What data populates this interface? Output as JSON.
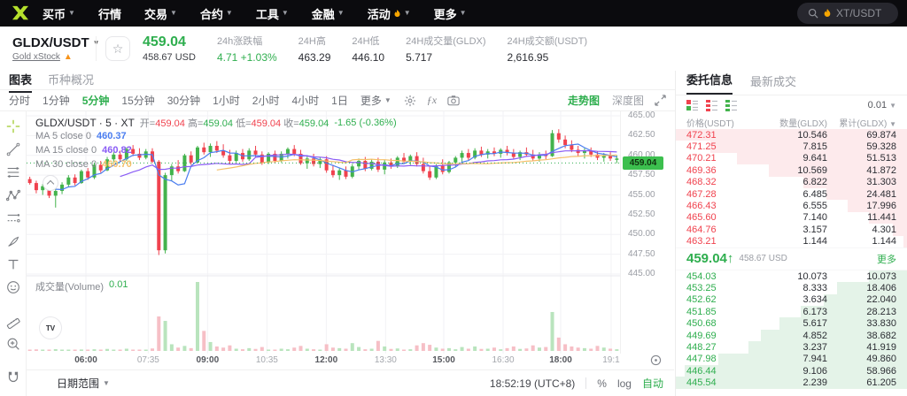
{
  "colors": {
    "green": "#2eae4e",
    "red": "#f0424e",
    "lime": "#b5e02c",
    "orange": "#f7a600",
    "depth_ask": "#fdeaec",
    "depth_bid": "#e4f3e8"
  },
  "nav": {
    "items": [
      {
        "name": "buy",
        "label": "买币",
        "caret": true
      },
      {
        "name": "markets",
        "label": "行情",
        "caret": false
      },
      {
        "name": "trade",
        "label": "交易",
        "caret": true
      },
      {
        "name": "futures",
        "label": "合约",
        "caret": true
      },
      {
        "name": "tools",
        "label": "工具",
        "caret": true
      },
      {
        "name": "finance",
        "label": "金融",
        "caret": true
      },
      {
        "name": "campaigns",
        "label": "活动",
        "caret": true,
        "flame": true
      },
      {
        "name": "more",
        "label": "更多",
        "caret": true
      }
    ],
    "search": {
      "placeholder": "XT/USDT"
    }
  },
  "ticker": {
    "pair": "GLDX/USDT",
    "name": "Gold xStock",
    "price": "459.04",
    "price_usd": "458.67 USD",
    "stats": [
      {
        "name": "change",
        "label": "24h涨跌幅",
        "value": "4.71 +1.03%",
        "green": true
      },
      {
        "name": "high",
        "label": "24H高",
        "value": "463.29"
      },
      {
        "name": "low",
        "label": "24H低",
        "value": "446.10"
      },
      {
        "name": "volume-base",
        "label": "24H成交量(GLDX)",
        "value": "5.717"
      },
      {
        "name": "volume-quote",
        "label": "24H成交额(USDT)",
        "value": "2,616.95"
      }
    ]
  },
  "chart_panel": {
    "tabs": [
      "图表",
      "币种概况"
    ],
    "active_tab": "图表",
    "timeframes": [
      "分时",
      "1分钟",
      "5分钟",
      "15分钟",
      "30分钟",
      "1小时",
      "2小时",
      "4小时",
      "1日"
    ],
    "active_timeframe": "5分钟",
    "more_label": "更多",
    "view_tabs": [
      "走势图",
      "深度图"
    ],
    "active_view": "走势图",
    "legend": {
      "title": "GLDX/USDT · 5 · XT",
      "items": [
        {
          "label": "开=",
          "value": "459.04",
          "color": "red"
        },
        {
          "label": "高=",
          "value": "459.04",
          "color": "green"
        },
        {
          "label": "低=",
          "value": "459.04",
          "color": "red"
        },
        {
          "label": "收=",
          "value": "459.04",
          "color": "green"
        }
      ],
      "change": "-1.65 (-0.36%)"
    },
    "mas": [
      {
        "label": "MA 5 close 0",
        "value": "460.37",
        "color": "#4a7df0"
      },
      {
        "label": "MA 15 close 0",
        "value": "460.82",
        "color": "#8a5cf5"
      },
      {
        "label": "MA 30 close 0",
        "value": "460.70",
        "color": "#f5c06a"
      }
    ],
    "volume_label": "成交量(Volume)",
    "volume_value": "0.01",
    "bottom": {
      "date_range": "日期范围",
      "clock": "18:52:19 (UTC+8)",
      "percent": "%",
      "log": "log",
      "auto": "自动"
    }
  },
  "chart_data": {
    "type": "candlestick",
    "symbol": "GLDX/USDT",
    "interval": "5m",
    "price_line": 459.04,
    "ylim": [
      445.0,
      465.0
    ],
    "y_ticks": [
      "465.00",
      "462.50",
      "460.00",
      "457.50",
      "455.00",
      "452.50",
      "450.00",
      "447.50",
      "445.00"
    ],
    "x_labels": [
      {
        "t": "06:00",
        "f": 0.1,
        "bold": true
      },
      {
        "t": "07:35",
        "f": 0.205,
        "bold": false
      },
      {
        "t": "09:00",
        "f": 0.305,
        "bold": true
      },
      {
        "t": "10:35",
        "f": 0.405,
        "bold": false
      },
      {
        "t": "12:00",
        "f": 0.505,
        "bold": true
      },
      {
        "t": "13:30",
        "f": 0.605,
        "bold": false
      },
      {
        "t": "15:00",
        "f": 0.703,
        "bold": true
      },
      {
        "t": "16:30",
        "f": 0.803,
        "bold": false
      },
      {
        "t": "18:00",
        "f": 0.9,
        "bold": true
      },
      {
        "t": "19:1",
        "f": 0.985,
        "bold": false
      }
    ],
    "colors": {
      "up": "#43b34c",
      "down": "#f0424e",
      "vol_up": "#b9e4bd",
      "vol_down": "#f6bfc6",
      "ma5": "#4a7df0",
      "ma15": "#8a5cf5",
      "ma30": "#f5c06a",
      "price_line": "#2eae4e"
    },
    "candles": [
      [
        457.0,
        457.3,
        456.3,
        456.5,
        0.01
      ],
      [
        456.5,
        456.8,
        455.2,
        455.6,
        0.014
      ],
      [
        455.6,
        456.4,
        455.0,
        456.1,
        0.008
      ],
      [
        456.1,
        456.3,
        454.6,
        454.9,
        0.012
      ],
      [
        454.9,
        455.8,
        453.4,
        455.5,
        0.016
      ],
      [
        455.5,
        456.6,
        455.1,
        456.3,
        0.009
      ],
      [
        456.3,
        457.5,
        456.0,
        457.2,
        0.011
      ],
      [
        457.2,
        457.6,
        456.2,
        456.5,
        0.007
      ],
      [
        456.5,
        458.2,
        456.4,
        458.0,
        0.013
      ],
      [
        458.0,
        458.4,
        456.9,
        457.2,
        0.01
      ],
      [
        457.2,
        459.0,
        457.0,
        458.8,
        0.015
      ],
      [
        458.8,
        459.3,
        457.8,
        458.1,
        0.008
      ],
      [
        458.1,
        459.8,
        458.0,
        459.5,
        0.018
      ],
      [
        459.5,
        460.4,
        458.9,
        460.1,
        0.012
      ],
      [
        460.1,
        460.6,
        459.2,
        459.5,
        0.009
      ],
      [
        459.5,
        461.0,
        459.3,
        460.8,
        0.02
      ],
      [
        460.8,
        461.3,
        459.9,
        460.2,
        0.011
      ],
      [
        460.2,
        460.9,
        459.4,
        459.7,
        0.008
      ],
      [
        459.7,
        460.8,
        459.5,
        460.5,
        0.01
      ],
      [
        460.5,
        460.9,
        459.0,
        459.2,
        0.022
      ],
      [
        459.2,
        459.4,
        447.4,
        448.0,
        0.31
      ],
      [
        448.0,
        457.8,
        447.6,
        457.5,
        0.27
      ],
      [
        457.5,
        458.9,
        456.8,
        458.6,
        0.06
      ],
      [
        458.6,
        459.4,
        457.7,
        458.0,
        0.03
      ],
      [
        458.0,
        460.2,
        457.9,
        460.0,
        0.045
      ],
      [
        460.0,
        460.5,
        458.8,
        459.1,
        0.025
      ],
      [
        459.1,
        461.2,
        459.0,
        461.0,
        0.62
      ],
      [
        461.0,
        461.6,
        460.1,
        460.4,
        0.18
      ],
      [
        460.4,
        461.5,
        459.8,
        461.2,
        0.08
      ],
      [
        461.2,
        461.8,
        460.3,
        460.6,
        0.04
      ],
      [
        460.6,
        461.4,
        459.7,
        460.0,
        0.03
      ],
      [
        460.0,
        460.7,
        458.9,
        459.3,
        0.05
      ],
      [
        459.3,
        460.6,
        459.1,
        460.3,
        0.02
      ],
      [
        460.3,
        460.8,
        459.2,
        459.5,
        0.015
      ],
      [
        459.5,
        460.9,
        459.3,
        460.6,
        0.025
      ],
      [
        460.6,
        461.2,
        459.8,
        460.1,
        0.018
      ],
      [
        460.1,
        460.5,
        458.8,
        459.1,
        0.035
      ],
      [
        459.1,
        460.4,
        458.9,
        460.2,
        0.012
      ],
      [
        460.2,
        460.6,
        459.0,
        459.3,
        0.01
      ],
      [
        459.3,
        460.5,
        459.1,
        460.2,
        0.02
      ],
      [
        460.2,
        461.0,
        459.6,
        460.8,
        0.015
      ],
      [
        460.8,
        461.3,
        459.9,
        460.2,
        0.03
      ],
      [
        460.2,
        460.7,
        458.8,
        459.0,
        0.045
      ],
      [
        459.0,
        459.9,
        458.3,
        459.6,
        0.02
      ],
      [
        459.6,
        460.2,
        458.6,
        458.9,
        0.015
      ],
      [
        458.9,
        459.8,
        458.4,
        459.5,
        0.01
      ],
      [
        459.5,
        459.9,
        457.8,
        458.1,
        0.06
      ],
      [
        458.1,
        458.8,
        457.2,
        457.5,
        0.03
      ],
      [
        457.5,
        458.4,
        456.9,
        458.1,
        0.025
      ],
      [
        458.1,
        458.6,
        457.0,
        457.3,
        0.02
      ],
      [
        457.3,
        458.9,
        457.1,
        458.6,
        0.07
      ],
      [
        458.6,
        459.6,
        458.2,
        459.3,
        0.035
      ],
      [
        459.3,
        459.8,
        458.0,
        458.3,
        0.015
      ],
      [
        458.3,
        459.5,
        458.1,
        459.2,
        0.02
      ],
      [
        459.2,
        459.7,
        457.9,
        458.2,
        0.09
      ],
      [
        458.2,
        459.4,
        457.6,
        459.1,
        0.04
      ],
      [
        459.1,
        459.6,
        458.3,
        458.6,
        0.018
      ],
      [
        458.6,
        459.9,
        458.4,
        459.7,
        0.022
      ],
      [
        459.7,
        460.3,
        458.9,
        459.2,
        0.012
      ],
      [
        459.2,
        460.1,
        458.8,
        459.9,
        0.015
      ],
      [
        459.9,
        460.4,
        458.6,
        458.9,
        0.05
      ],
      [
        458.9,
        459.7,
        457.7,
        458.0,
        0.07
      ],
      [
        458.0,
        458.7,
        456.9,
        457.2,
        0.055
      ],
      [
        457.2,
        458.9,
        457.0,
        458.7,
        0.03
      ],
      [
        458.7,
        459.5,
        457.6,
        457.9,
        0.02
      ],
      [
        457.9,
        459.3,
        457.7,
        459.1,
        0.025
      ],
      [
        459.1,
        459.9,
        458.5,
        459.7,
        0.015
      ],
      [
        459.7,
        460.6,
        459.2,
        460.3,
        0.035
      ],
      [
        460.3,
        460.8,
        459.4,
        459.7,
        0.02
      ],
      [
        459.7,
        460.9,
        459.5,
        460.6,
        0.04
      ],
      [
        460.6,
        461.1,
        459.8,
        460.1,
        0.018
      ],
      [
        460.1,
        460.8,
        459.6,
        460.5,
        0.02
      ],
      [
        460.5,
        461.0,
        459.9,
        460.2,
        0.03
      ],
      [
        460.2,
        460.9,
        459.7,
        460.7,
        0.015
      ],
      [
        460.7,
        461.2,
        460.0,
        460.3,
        0.025
      ],
      [
        460.3,
        460.8,
        459.5,
        459.8,
        0.04
      ],
      [
        459.8,
        460.6,
        459.4,
        460.4,
        0.018
      ],
      [
        460.4,
        461.0,
        459.8,
        460.1,
        0.022
      ],
      [
        460.1,
        460.7,
        459.3,
        459.6,
        0.05
      ],
      [
        459.6,
        460.4,
        459.2,
        460.1,
        0.03
      ],
      [
        460.1,
        460.6,
        459.5,
        459.9,
        0.035
      ],
      [
        459.9,
        463.2,
        459.8,
        462.8,
        0.35
      ],
      [
        462.8,
        463.3,
        461.6,
        462.0,
        0.12
      ],
      [
        462.0,
        462.5,
        460.9,
        461.3,
        0.06
      ],
      [
        461.3,
        461.9,
        460.4,
        460.7,
        0.04
      ],
      [
        460.7,
        461.2,
        459.9,
        460.3,
        0.03
      ],
      [
        460.3,
        460.9,
        459.6,
        460.6,
        0.025
      ],
      [
        460.6,
        461.0,
        459.8,
        460.1,
        0.02
      ],
      [
        460.1,
        460.5,
        459.4,
        459.7,
        0.045
      ],
      [
        459.7,
        460.3,
        459.2,
        460.0,
        0.03
      ],
      [
        460.0,
        460.4,
        459.3,
        459.6,
        0.02
      ],
      [
        459.6,
        460.0,
        459.0,
        459.6,
        0.015
      ]
    ]
  },
  "orderbook": {
    "tabs": [
      "委托信息",
      "最新成交"
    ],
    "active_tab": "委托信息",
    "precision": "0.01",
    "columns": [
      "价格(USDT)",
      "数量(GLDX)",
      "累计(GLDX)"
    ],
    "asks": [
      [
        "472.31",
        "10.546",
        "69.874"
      ],
      [
        "471.25",
        "7.815",
        "59.328"
      ],
      [
        "470.21",
        "9.641",
        "51.513"
      ],
      [
        "469.36",
        "10.569",
        "41.872"
      ],
      [
        "468.32",
        "6.822",
        "31.303"
      ],
      [
        "467.28",
        "6.485",
        "24.481"
      ],
      [
        "466.43",
        "6.555",
        "17.996"
      ],
      [
        "465.60",
        "7.140",
        "11.441"
      ],
      [
        "464.76",
        "3.157",
        "4.301"
      ],
      [
        "463.21",
        "1.144",
        "1.144"
      ]
    ],
    "mid": {
      "price": "459.04",
      "arrow": "↑",
      "usd": "458.67 USD",
      "more_label": "更多"
    },
    "bids": [
      [
        "454.03",
        "10.073",
        "10.073"
      ],
      [
        "453.25",
        "8.333",
        "18.406"
      ],
      [
        "452.62",
        "3.634",
        "22.040"
      ],
      [
        "451.85",
        "6.173",
        "28.213"
      ],
      [
        "450.68",
        "5.617",
        "33.830"
      ],
      [
        "449.69",
        "4.852",
        "38.682"
      ],
      [
        "448.27",
        "3.237",
        "41.919"
      ],
      [
        "447.98",
        "7.941",
        "49.860"
      ],
      [
        "446.44",
        "9.106",
        "58.966"
      ],
      [
        "445.54",
        "2.239",
        "61.205"
      ]
    ]
  }
}
